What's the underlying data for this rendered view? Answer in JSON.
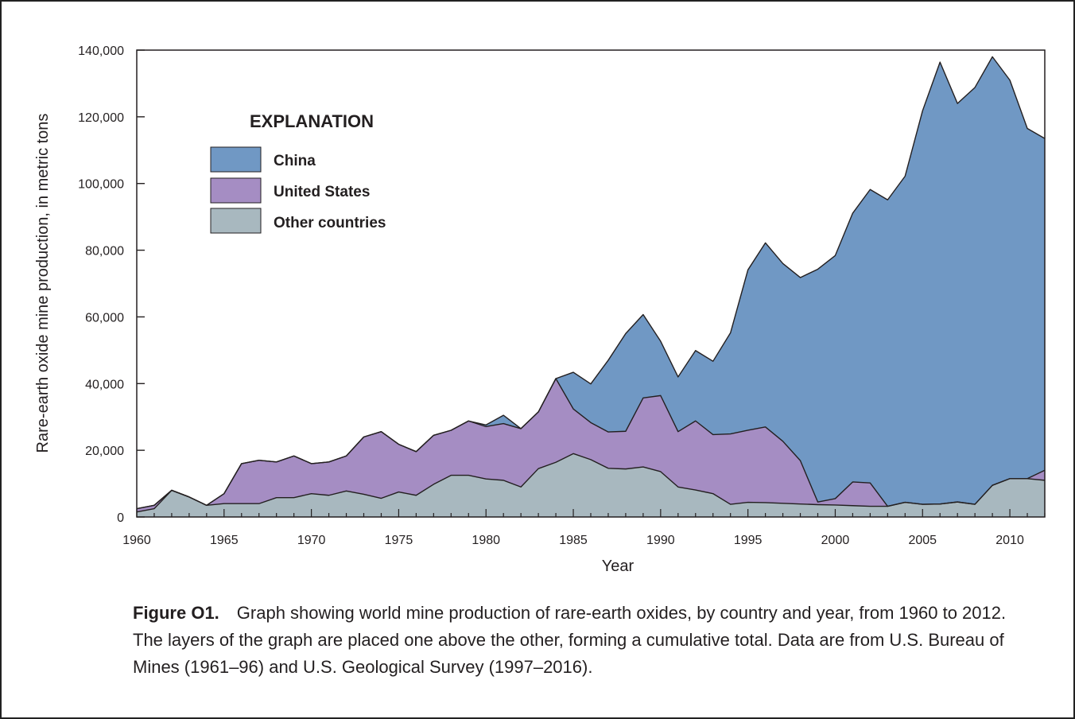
{
  "colors": {
    "china": "#7098c4",
    "united_states": "#a58dc3",
    "other": "#a8b8bf",
    "stroke": "#231f20"
  },
  "caption": {
    "label": "Figure O1.",
    "text": "Graph showing world mine production of rare-earth oxides, by country and year, from 1960 to 2012. The layers of the graph are placed one above the other, forming a cumulative total. Data are from U.S. Bureau of Mines (1961–96) and U.S. Geological Survey (1997–2016)."
  },
  "chart_data": {
    "type": "area",
    "stacked": true,
    "xlabel": "Year",
    "ylabel": "Rare-earth oxide mine production, in metric tons",
    "xlim": [
      1960,
      2012
    ],
    "ylim": [
      0,
      140000
    ],
    "x_ticks": [
      1960,
      1965,
      1970,
      1975,
      1980,
      1985,
      1990,
      1995,
      2000,
      2005,
      2010
    ],
    "x_tick_labels": [
      "1960",
      "1965",
      "1970",
      "1975",
      "1980",
      "1985",
      "1990",
      "1995",
      "2000",
      "2005",
      "2010"
    ],
    "y_ticks": [
      0,
      20000,
      40000,
      60000,
      80000,
      100000,
      120000,
      140000
    ],
    "y_tick_labels": [
      "0",
      "20,000",
      "40,000",
      "60,000",
      "80,000",
      "100,000",
      "120,000",
      "140,000"
    ],
    "grid": false,
    "legend": {
      "title": "EXPLANATION",
      "placement": "top-left",
      "order": [
        "China",
        "United States",
        "Other countries"
      ]
    },
    "x": [
      1960,
      1961,
      1962,
      1963,
      1964,
      1965,
      1966,
      1967,
      1968,
      1969,
      1970,
      1971,
      1972,
      1973,
      1974,
      1975,
      1976,
      1977,
      1978,
      1979,
      1980,
      1981,
      1982,
      1983,
      1984,
      1985,
      1986,
      1987,
      1988,
      1989,
      1990,
      1991,
      1992,
      1993,
      1994,
      1995,
      1996,
      1997,
      1998,
      1999,
      2000,
      2001,
      2002,
      2003,
      2004,
      2005,
      2006,
      2007,
      2008,
      2009,
      2010,
      2011,
      2012
    ],
    "series": [
      {
        "name": "Other countries",
        "values": [
          1500,
          2500,
          8000,
          6000,
          3500,
          4000,
          4000,
          4000,
          5800,
          5800,
          7000,
          6500,
          7800,
          6800,
          5600,
          7500,
          6500,
          9800,
          12500,
          12500,
          11400,
          11000,
          9000,
          14500,
          16400,
          19000,
          17200,
          14600,
          14400,
          15000,
          13600,
          9000,
          8100,
          7000,
          3800,
          4400,
          4300,
          4100,
          3900,
          3700,
          3600,
          3400,
          3200,
          3200,
          4400,
          3800,
          3900,
          4500,
          3800,
          9500,
          11500,
          11500,
          11000
        ]
      },
      {
        "name": "United States",
        "values": [
          1000,
          1000,
          0,
          0,
          0,
          3000,
          12000,
          13000,
          10700,
          12500,
          9000,
          10000,
          10500,
          17200,
          20000,
          14300,
          13100,
          14700,
          13500,
          16300,
          15700,
          17000,
          17500,
          17000,
          25100,
          13400,
          11100,
          10900,
          11300,
          20700,
          22800,
          16600,
          20700,
          17700,
          21100,
          21600,
          22700,
          18600,
          13000,
          800,
          1900,
          7100,
          7000,
          0,
          0,
          0,
          0,
          0,
          0,
          0,
          0,
          0,
          3000
        ]
      },
      {
        "name": "China",
        "values": [
          0,
          0,
          0,
          0,
          0,
          0,
          0,
          0,
          0,
          0,
          0,
          0,
          0,
          0,
          0,
          0,
          0,
          0,
          0,
          0,
          500,
          2500,
          0,
          0,
          0,
          11000,
          11600,
          21500,
          29300,
          25000,
          16300,
          16400,
          21100,
          22000,
          30300,
          48100,
          55200,
          53300,
          54900,
          69800,
          72900,
          80600,
          88000,
          91900,
          97800,
          118000,
          132500,
          119500,
          125000,
          128500,
          119500,
          105000,
          99500
        ]
      }
    ]
  }
}
